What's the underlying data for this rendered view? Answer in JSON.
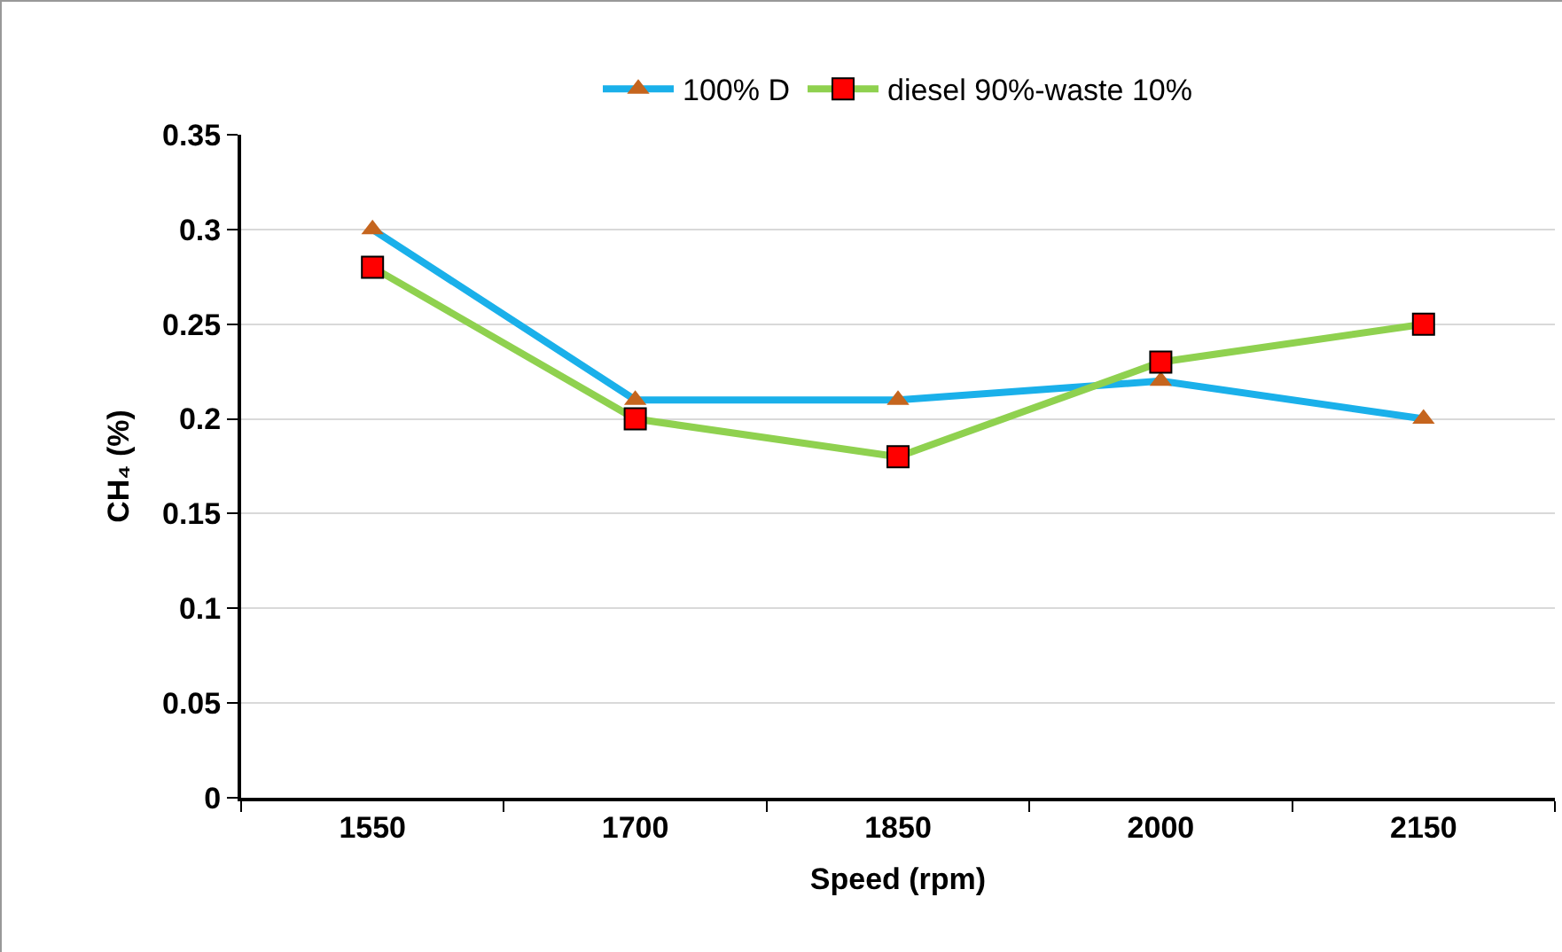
{
  "chart_data": {
    "type": "line",
    "xlabel": "Speed (rpm)",
    "ylabel": "CH₄ (%)",
    "categories": [
      "1550",
      "1700",
      "1850",
      "2000",
      "2150"
    ],
    "series": [
      {
        "name": "100% D",
        "color": "#1ab0ea",
        "marker": "triangle",
        "colors": [
          "#c5651e",
          "#c5651e",
          "#c5651e",
          "#c5651e",
          "#c5651e"
        ],
        "values": [
          0.3,
          0.21,
          0.21,
          0.22,
          0.2
        ]
      },
      {
        "name": "diesel 90%-waste 10%",
        "color": "#8fd14f",
        "marker": "square",
        "colors": [
          "#ff0000",
          "#ff0000",
          "#ff0000",
          "#ff0000",
          "#ff0000"
        ],
        "values": [
          0.28,
          0.2,
          0.18,
          0.23,
          0.25
        ]
      }
    ],
    "ylim": [
      0,
      0.35
    ],
    "yticks": [
      {
        "value": 0,
        "label": "0"
      },
      0.05,
      0.1,
      0.15,
      0.2,
      0.25,
      0.3,
      0.35
    ],
    "grid": "y",
    "legend": "top",
    "line_style": "solid"
  }
}
